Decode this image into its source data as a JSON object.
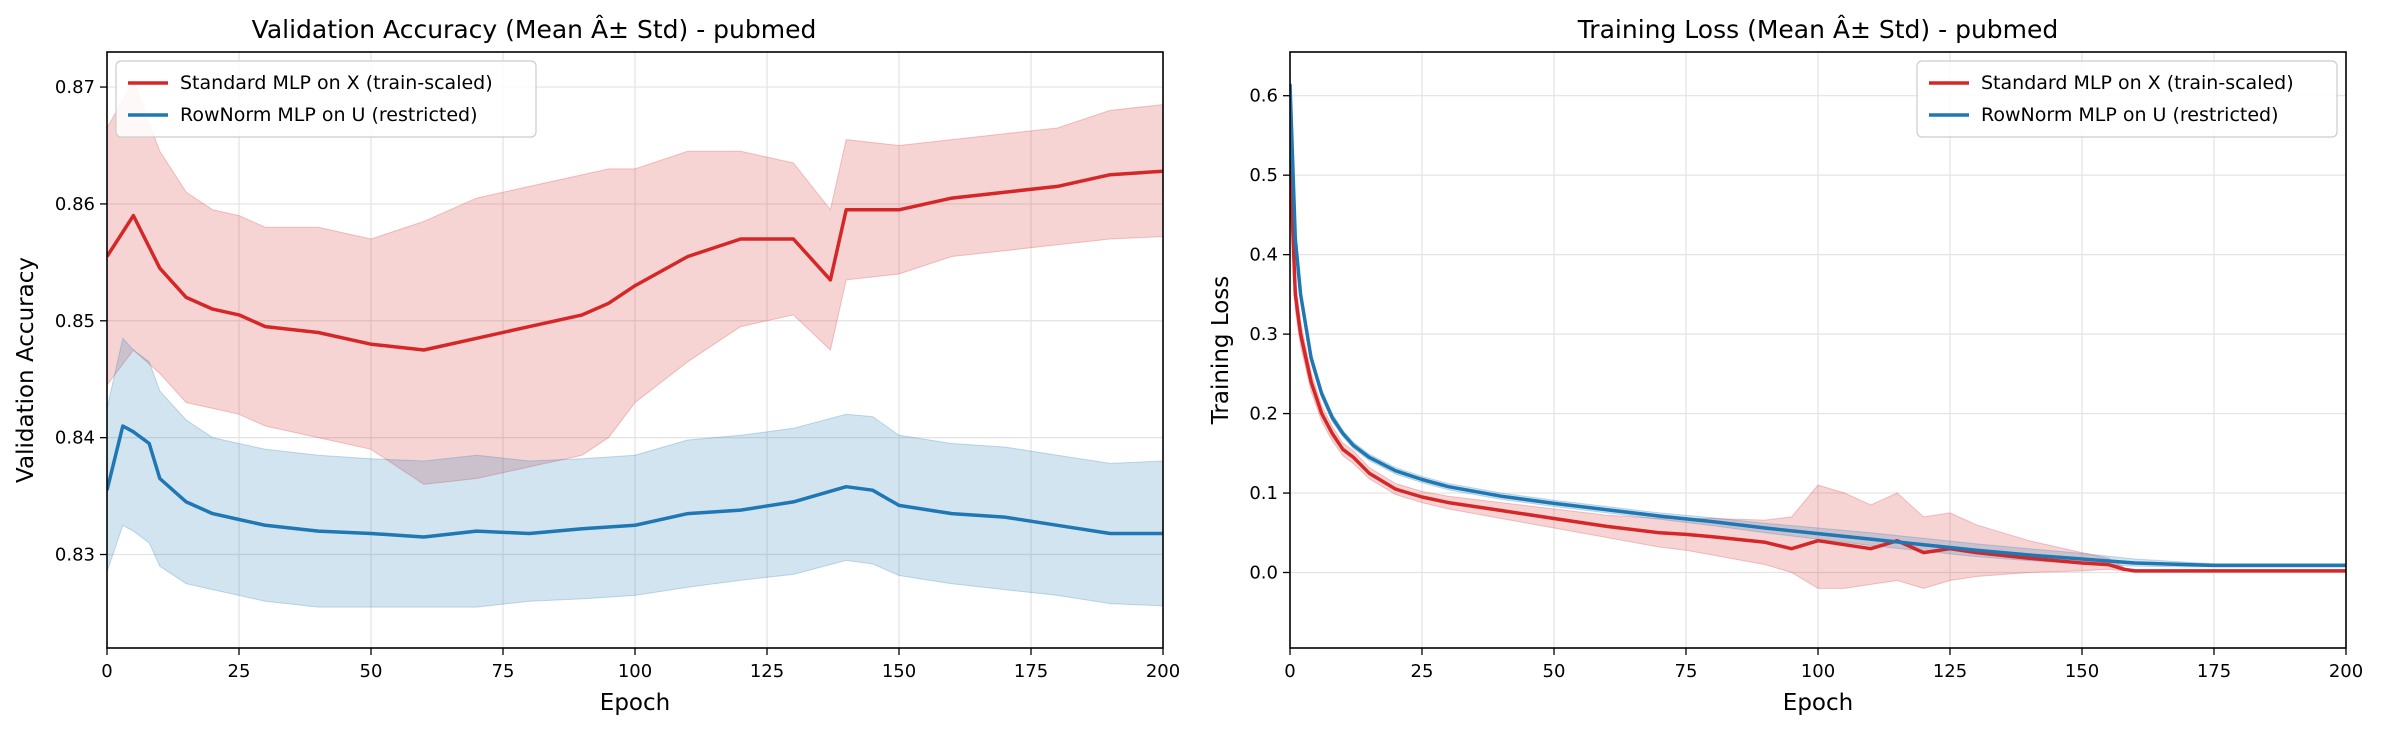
{
  "colors": {
    "standard": "#d62728",
    "rownorm": "#1f77b4"
  },
  "chart_data": [
    {
      "type": "line",
      "title": "Validation Accuracy (Mean Â± Std) - pubmed",
      "xlabel": "Epoch",
      "ylabel": "Validation Accuracy",
      "xlim": [
        0,
        200
      ],
      "ylim": [
        0.822,
        0.873
      ],
      "xticks": [
        0,
        25,
        50,
        75,
        100,
        125,
        150,
        175,
        200
      ],
      "yticks": [
        0.83,
        0.84,
        0.85,
        0.86,
        0.87
      ],
      "ytick_format": 2,
      "grid": true,
      "legend_position": "upper-left",
      "series": [
        {
          "name": "Standard MLP on X (train-scaled)",
          "color": "#d62728",
          "x": [
            0,
            5,
            10,
            15,
            20,
            25,
            30,
            40,
            50,
            60,
            70,
            80,
            90,
            95,
            100,
            110,
            120,
            130,
            137,
            140,
            150,
            160,
            170,
            180,
            190,
            200
          ],
          "y": [
            0.8555,
            0.859,
            0.8545,
            0.852,
            0.851,
            0.8505,
            0.8495,
            0.849,
            0.848,
            0.8475,
            0.8485,
            0.8495,
            0.8505,
            0.8515,
            0.853,
            0.8555,
            0.857,
            0.857,
            0.8535,
            0.8595,
            0.8595,
            0.8605,
            0.861,
            0.8615,
            0.8625,
            0.8628
          ],
          "std_lower": [
            0.8445,
            0.8475,
            0.8455,
            0.843,
            0.8425,
            0.842,
            0.841,
            0.84,
            0.839,
            0.836,
            0.8365,
            0.8375,
            0.8385,
            0.84,
            0.843,
            0.8465,
            0.8495,
            0.8505,
            0.8475,
            0.8535,
            0.854,
            0.8555,
            0.856,
            0.8565,
            0.857,
            0.8572
          ],
          "std_upper": [
            0.8665,
            0.8705,
            0.8645,
            0.861,
            0.8595,
            0.859,
            0.858,
            0.858,
            0.857,
            0.8585,
            0.8605,
            0.8615,
            0.8625,
            0.863,
            0.863,
            0.8645,
            0.8645,
            0.8635,
            0.8595,
            0.8655,
            0.865,
            0.8655,
            0.866,
            0.8665,
            0.868,
            0.8685
          ]
        },
        {
          "name": "RowNorm MLP on U (restricted)",
          "color": "#1f77b4",
          "x": [
            0,
            3,
            5,
            8,
            10,
            15,
            20,
            25,
            30,
            40,
            50,
            60,
            70,
            80,
            90,
            100,
            110,
            120,
            130,
            140,
            145,
            150,
            160,
            170,
            180,
            190,
            200
          ],
          "y": [
            0.8355,
            0.841,
            0.8405,
            0.8395,
            0.8365,
            0.8345,
            0.8335,
            0.833,
            0.8325,
            0.832,
            0.8318,
            0.8315,
            0.832,
            0.8318,
            0.8322,
            0.8325,
            0.8335,
            0.8338,
            0.8345,
            0.8358,
            0.8355,
            0.8342,
            0.8335,
            0.8332,
            0.8325,
            0.8318,
            0.8318
          ],
          "std_lower": [
            0.8285,
            0.8325,
            0.832,
            0.831,
            0.829,
            0.8275,
            0.827,
            0.8265,
            0.826,
            0.8255,
            0.8255,
            0.8255,
            0.8255,
            0.826,
            0.8262,
            0.8265,
            0.8272,
            0.8278,
            0.8283,
            0.8295,
            0.8292,
            0.8282,
            0.8275,
            0.827,
            0.8265,
            0.8258,
            0.8256
          ],
          "std_upper": [
            0.8425,
            0.8485,
            0.8475,
            0.8465,
            0.844,
            0.8415,
            0.84,
            0.8395,
            0.839,
            0.8385,
            0.8382,
            0.838,
            0.8385,
            0.838,
            0.8382,
            0.8385,
            0.8398,
            0.8402,
            0.8408,
            0.842,
            0.8418,
            0.8402,
            0.8395,
            0.8392,
            0.8385,
            0.8378,
            0.838
          ]
        }
      ]
    },
    {
      "type": "line",
      "title": "Training Loss (Mean Â± Std) - pubmed",
      "xlabel": "Epoch",
      "ylabel": "Training Loss",
      "xlim": [
        0,
        200
      ],
      "ylim": [
        -0.095,
        0.655
      ],
      "xticks": [
        0,
        25,
        50,
        75,
        100,
        125,
        150,
        175,
        200
      ],
      "yticks": [
        0.0,
        0.1,
        0.2,
        0.3,
        0.4,
        0.5,
        0.6
      ],
      "ytick_format": 1,
      "grid": true,
      "legend_position": "upper-right",
      "series": [
        {
          "name": "Standard MLP on X (train-scaled)",
          "color": "#d62728",
          "x": [
            0,
            1,
            2,
            4,
            6,
            8,
            10,
            12,
            15,
            20,
            25,
            30,
            40,
            50,
            60,
            70,
            75,
            80,
            90,
            95,
            100,
            105,
            110,
            115,
            120,
            125,
            130,
            140,
            150,
            155,
            158,
            160,
            170,
            180,
            190,
            200
          ],
          "y": [
            0.52,
            0.35,
            0.3,
            0.24,
            0.2,
            0.175,
            0.155,
            0.145,
            0.125,
            0.105,
            0.095,
            0.088,
            0.078,
            0.068,
            0.058,
            0.05,
            0.048,
            0.045,
            0.038,
            0.03,
            0.04,
            0.035,
            0.03,
            0.04,
            0.025,
            0.03,
            0.025,
            0.018,
            0.012,
            0.01,
            0.004,
            0.002,
            0.002,
            0.002,
            0.002,
            0.002
          ],
          "std_lower": [
            0.49,
            0.33,
            0.285,
            0.228,
            0.19,
            0.166,
            0.147,
            0.137,
            0.118,
            0.098,
            0.088,
            0.08,
            0.068,
            0.056,
            0.044,
            0.032,
            0.028,
            0.022,
            0.01,
            0.0,
            -0.02,
            -0.02,
            -0.015,
            -0.01,
            -0.02,
            -0.01,
            -0.005,
            0.0,
            0.002,
            0.004,
            0.002,
            0.002,
            0.002,
            0.002,
            0.002,
            0.002
          ],
          "std_upper": [
            0.55,
            0.37,
            0.315,
            0.252,
            0.21,
            0.184,
            0.163,
            0.153,
            0.132,
            0.112,
            0.102,
            0.096,
            0.088,
            0.08,
            0.072,
            0.068,
            0.068,
            0.068,
            0.066,
            0.07,
            0.11,
            0.1,
            0.085,
            0.1,
            0.07,
            0.075,
            0.06,
            0.04,
            0.025,
            0.018,
            0.006,
            0.002,
            0.002,
            0.002,
            0.002,
            0.002
          ]
        },
        {
          "name": "RowNorm MLP on U (restricted)",
          "color": "#1f77b4",
          "x": [
            0,
            1,
            2,
            4,
            6,
            8,
            10,
            12,
            15,
            20,
            25,
            30,
            40,
            50,
            60,
            70,
            80,
            90,
            100,
            110,
            120,
            130,
            140,
            150,
            160,
            170,
            175,
            180,
            190,
            200
          ],
          "y": [
            0.615,
            0.42,
            0.35,
            0.27,
            0.225,
            0.195,
            0.175,
            0.16,
            0.145,
            0.128,
            0.117,
            0.108,
            0.096,
            0.087,
            0.079,
            0.071,
            0.064,
            0.056,
            0.049,
            0.042,
            0.035,
            0.028,
            0.022,
            0.017,
            0.012,
            0.01,
            0.009,
            0.009,
            0.009,
            0.009
          ],
          "std_lower": [
            0.6,
            0.41,
            0.342,
            0.264,
            0.22,
            0.19,
            0.171,
            0.156,
            0.141,
            0.124,
            0.113,
            0.104,
            0.092,
            0.083,
            0.075,
            0.067,
            0.059,
            0.05,
            0.042,
            0.034,
            0.027,
            0.02,
            0.015,
            0.011,
            0.008,
            0.007,
            0.007,
            0.007,
            0.007,
            0.007
          ],
          "std_upper": [
            0.63,
            0.43,
            0.358,
            0.276,
            0.23,
            0.2,
            0.179,
            0.164,
            0.149,
            0.132,
            0.121,
            0.112,
            0.1,
            0.091,
            0.083,
            0.075,
            0.069,
            0.062,
            0.056,
            0.05,
            0.043,
            0.036,
            0.03,
            0.024,
            0.017,
            0.013,
            0.011,
            0.011,
            0.011,
            0.011
          ]
        }
      ]
    }
  ]
}
